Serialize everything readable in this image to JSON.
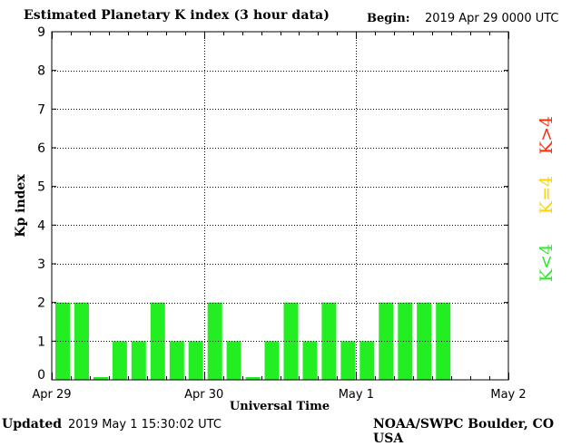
{
  "header": {
    "title": "Estimated Planetary K index (3 hour data)",
    "begin_label": "Begin:",
    "begin_value": "2019 Apr 29 0000 UTC"
  },
  "footer": {
    "updated_label": "Updated",
    "updated_value": "2019 May  1 15:30:02 UTC",
    "credit": "NOAA/SWPC Boulder, CO USA"
  },
  "legend": [
    {
      "label": "K>4",
      "color": "#ff2a0a"
    },
    {
      "label": "K=4",
      "color": "#ffd200"
    },
    {
      "label": "K<4",
      "color": "#22ee22"
    }
  ],
  "chart_data": {
    "type": "bar",
    "title": "Estimated Planetary K index (3 hour data)",
    "xlabel": "Universal Time",
    "ylabel": "Kp index",
    "ylim": [
      0,
      9
    ],
    "y_ticks": [
      "0",
      "1",
      "2",
      "3",
      "4",
      "5",
      "6",
      "7",
      "8",
      "9"
    ],
    "x_ticks": [
      "Apr 29",
      "Apr 30",
      "May 1",
      "May 2"
    ],
    "bars_per_day": 8,
    "grid": true,
    "bar_color": "#22ee22",
    "values": [
      2,
      2,
      0.07,
      1,
      1,
      2,
      1,
      1,
      2,
      1,
      0.07,
      1,
      2,
      1,
      2,
      1,
      1,
      2,
      2,
      2,
      2
    ]
  }
}
